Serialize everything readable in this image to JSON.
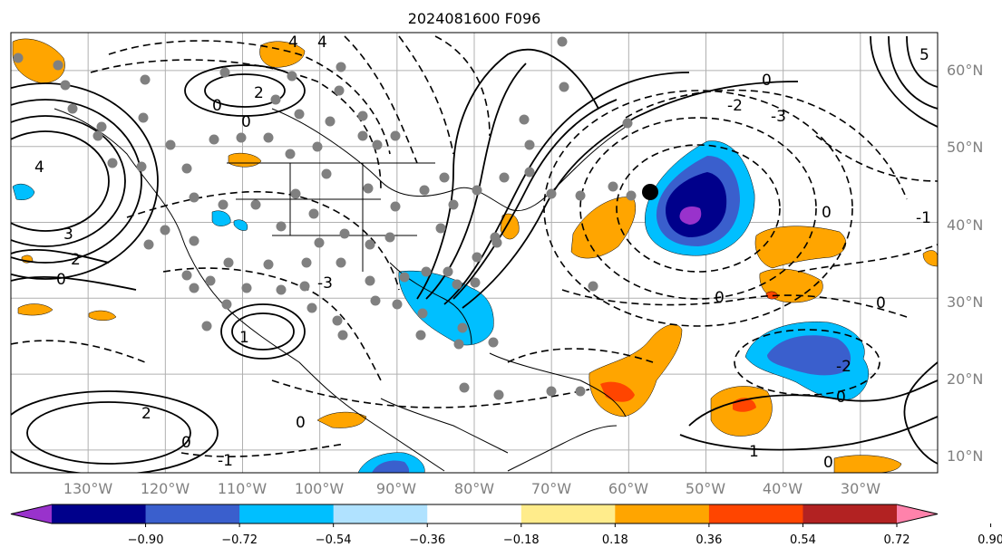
{
  "map": {
    "title": "2024081600 F096",
    "projection": "PlateCarree",
    "lon_range": [
      -140,
      -20
    ],
    "lat_range": [
      7,
      65
    ],
    "lat_labels": [
      "60°N",
      "50°N",
      "40°N",
      "30°N",
      "20°N",
      "10°N"
    ],
    "lon_labels": [
      "130°W",
      "120°W",
      "110°W",
      "100°W",
      "90°W",
      "80°W",
      "70°W",
      "60°W",
      "50°W",
      "40°W",
      "30°W"
    ],
    "contour_labels": [
      "5",
      "4",
      "3",
      "2",
      "1",
      "0",
      "-1",
      "-2",
      "-3"
    ],
    "colorbar": {
      "tick_labels": [
        "−0.90",
        "−0.72",
        "−0.54",
        "−0.36",
        "−0.18",
        "0.18",
        "0.36",
        "0.54",
        "0.72",
        "0.90"
      ],
      "colors": [
        "#9932cc",
        "#00008b",
        "#3a5fcd",
        "#00bfff",
        "#b0e2ff",
        "#ffffff",
        "#ffec8b",
        "#ffa500",
        "#ff4500",
        "#b22222",
        "#ff82ab"
      ],
      "extend": "both"
    },
    "colors": {
      "positive_fill": "#ffa500",
      "positive_strong": "#ff4500",
      "negative_fill": "#00bfff",
      "negative_mid": "#3a5fcd",
      "negative_strong": "#00008b",
      "negative_core": "#9932cc",
      "contour": "#000000",
      "gridline": "#b0b0b0",
      "station_dot": "#808080"
    }
  }
}
